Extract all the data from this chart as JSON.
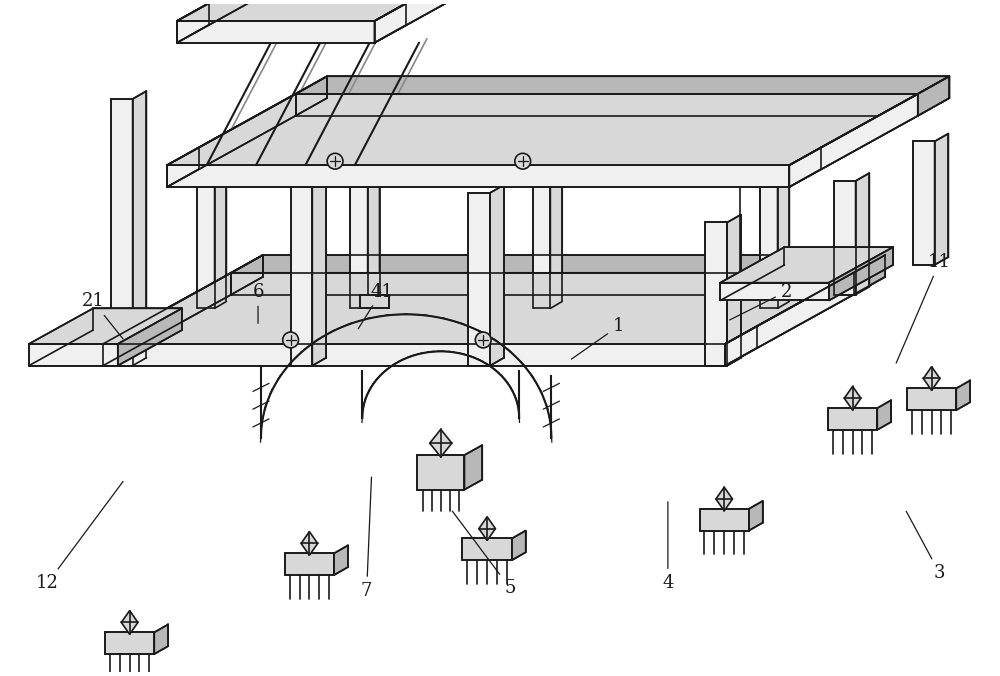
{
  "bg_color": "#ffffff",
  "line_color": "#1a1a1a",
  "fill_light": "#f0f0f0",
  "fill_mid": "#d8d8d8",
  "fill_dark": "#b8b8b8",
  "lw": 1.2,
  "lw_thick": 1.5,
  "label_fontsize": 13,
  "figsize": [
    10.0,
    6.76
  ],
  "dpi": 100
}
